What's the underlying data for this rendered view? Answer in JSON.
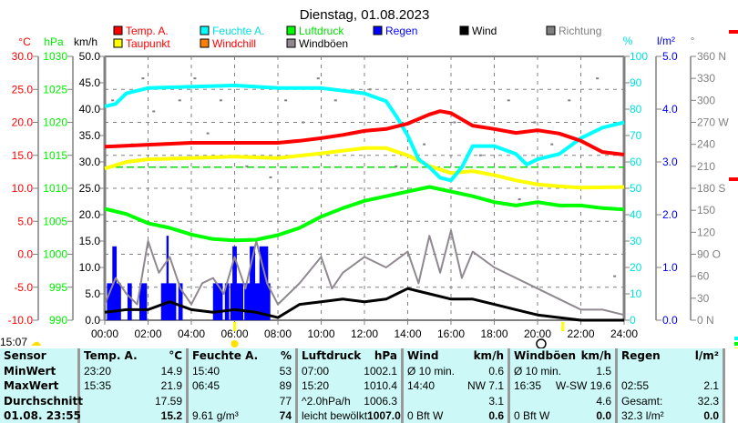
{
  "title": "Dienstag, 01.08.2023",
  "legend": [
    {
      "label": "Temp. A.",
      "color": "#ff0000",
      "text_color": "#ff0000"
    },
    {
      "label": "Feuchte A.",
      "color": "#00ffff",
      "text_color": "#00e0e0"
    },
    {
      "label": "Luftdruck",
      "color": "#00ff00",
      "text_color": "#00dd00"
    },
    {
      "label": "Regen",
      "color": "#0000ff",
      "text_color": "#0000ff"
    },
    {
      "label": "Wind",
      "color": "#000000",
      "text_color": "#000000"
    },
    {
      "label": "Richtung",
      "color": "#808080",
      "text_color": "#808080"
    },
    {
      "label": "Taupunkt",
      "color": "#ffff00",
      "text_color": "#ff0000"
    },
    {
      "label": "Windchill",
      "color": "#ff8000",
      "text_color": "#ff0000"
    },
    {
      "label": "Windböen",
      "color": "#908890",
      "text_color": "#000000"
    }
  ],
  "chart_data": {
    "type": "line",
    "title": "Dienstag, 01.08.2023",
    "x_unit": "hour",
    "xlim": [
      0,
      24
    ],
    "x_ticks": [
      "00:00",
      "02:00",
      "04:00",
      "06:00",
      "08:00",
      "10:00",
      "12:00",
      "14:00",
      "16:00",
      "18:00",
      "20:00",
      "22:00",
      "24:00"
    ],
    "axes": {
      "temp": {
        "label": "°C",
        "range": [
          -10,
          30
        ],
        "ticks": [
          "30.0",
          "25.0",
          "20.0",
          "15.0",
          "10.0",
          "5.0",
          "0.0",
          "-5.0",
          "-10.0"
        ],
        "color": "#ff0000"
      },
      "pressure": {
        "label": "hPa",
        "range": [
          990,
          1030
        ],
        "ticks": [
          "1030",
          "1025",
          "1020",
          "1015",
          "1010",
          "1005",
          "1000",
          "995",
          "990"
        ],
        "color": "#00ee00"
      },
      "wind": {
        "label": "km/h",
        "range": [
          0,
          50
        ],
        "ticks": [
          "50.0",
          "45.0",
          "40.0",
          "35.0",
          "30.0",
          "25.0",
          "20.0",
          "15.0",
          "10.0",
          "5.0",
          "0.0"
        ],
        "color": "#000000"
      },
      "humidity": {
        "label": "%",
        "range": [
          0,
          100
        ],
        "ticks": [
          "100",
          "90",
          "80",
          "70",
          "60",
          "50",
          "40",
          "30",
          "20",
          "10",
          "0"
        ],
        "color": "#00e0e0"
      },
      "rain": {
        "label": "l/m²",
        "range": [
          0,
          5
        ],
        "ticks": [
          "5.0",
          "4.0",
          "3.0",
          "2.0",
          "1.0",
          "0.0"
        ],
        "color": "#0000ff"
      },
      "direction": {
        "label": "°",
        "range": [
          0,
          360
        ],
        "ticks": [
          "360 N",
          "330",
          "300",
          "270 W",
          "240",
          "210",
          "180 S",
          "150",
          "120",
          "90  O",
          "60",
          "30",
          "0   N"
        ],
        "color": "#808080"
      }
    },
    "series": [
      {
        "name": "Temp. A.",
        "axis": "temp",
        "color": "#ff0000",
        "x": [
          0,
          2,
          4,
          6,
          8,
          9,
          10,
          11,
          12,
          13,
          14,
          15,
          15.5,
          16,
          17,
          18,
          19,
          20,
          21,
          22,
          23,
          24
        ],
        "y": [
          16.3,
          16.6,
          16.9,
          16.9,
          16.9,
          17.2,
          17.6,
          18.1,
          18.7,
          19.0,
          19.8,
          21.2,
          21.7,
          21.4,
          19.5,
          19.0,
          18.4,
          18.8,
          18.3,
          17.2,
          15.5,
          15.1
        ]
      },
      {
        "name": "Taupunkt",
        "axis": "temp",
        "color": "#ffff00",
        "x": [
          0,
          1,
          2,
          4,
          6,
          8,
          10,
          12,
          13,
          14,
          15,
          16,
          17,
          18,
          19,
          20,
          21,
          22,
          24
        ],
        "y": [
          13.0,
          14.0,
          14.4,
          14.6,
          14.8,
          14.6,
          15.3,
          16.1,
          16.1,
          15.0,
          13.4,
          12.3,
          12.6,
          12.0,
          11.2,
          10.6,
          10.3,
          10.1,
          10.2
        ]
      },
      {
        "name": "Feuchte A.",
        "axis": "humidity",
        "color": "#00ffff",
        "x": [
          0,
          0.5,
          1,
          2,
          6,
          8,
          10,
          11,
          12,
          13,
          13.5,
          14,
          14.5,
          15,
          15.5,
          16,
          16.5,
          17,
          18,
          19,
          19.5,
          20,
          21,
          22,
          23,
          24
        ],
        "y": [
          81,
          82,
          86,
          88,
          89,
          88,
          88,
          87,
          86,
          83,
          77,
          70,
          61,
          58,
          54,
          53,
          58,
          66,
          66,
          63,
          59,
          61,
          63,
          69,
          73,
          75
        ]
      },
      {
        "name": "Luftdruck",
        "axis": "pressure",
        "color": "#00ff00",
        "x": [
          0,
          1,
          2,
          3,
          4,
          5,
          6,
          7,
          8,
          9,
          10,
          11,
          12,
          13,
          14,
          15,
          16,
          17,
          18,
          19,
          20,
          21,
          22,
          23,
          24
        ],
        "y": [
          1006.9,
          1006.1,
          1004.7,
          1004.0,
          1003.0,
          1002.3,
          1002.1,
          1002.2,
          1002.9,
          1004.0,
          1005.7,
          1007.0,
          1008.1,
          1008.8,
          1009.5,
          1010.2,
          1009.5,
          1008.8,
          1007.9,
          1007.4,
          1007.9,
          1007.4,
          1007.4,
          1007.0,
          1006.8
        ]
      },
      {
        "name": "Windböen",
        "axis": "wind",
        "color": "#908890",
        "x": [
          0,
          0.5,
          1,
          1.5,
          2,
          2.5,
          3,
          3.5,
          4,
          4.5,
          5,
          5.5,
          6,
          6.5,
          7,
          7.5,
          8,
          9,
          10,
          10.5,
          11,
          12,
          13,
          14,
          14.5,
          15,
          15.5,
          16,
          16.5,
          17,
          18,
          19,
          20,
          21,
          22,
          23,
          24
        ],
        "y": [
          3,
          8,
          5,
          3,
          15,
          9,
          12,
          6,
          3,
          7,
          8,
          5,
          12,
          6,
          15,
          7,
          3,
          7,
          12,
          6,
          9,
          12,
          10,
          13,
          7,
          16,
          9,
          17,
          8,
          13,
          10,
          8,
          6,
          4,
          2,
          2,
          1
        ]
      },
      {
        "name": "Wind",
        "axis": "wind",
        "color": "#000000",
        "x": [
          0,
          1,
          2,
          3,
          4,
          5,
          6,
          7,
          8,
          9,
          10,
          11,
          12,
          13,
          14,
          15,
          16,
          17,
          18,
          19,
          20,
          21,
          22,
          23,
          24
        ],
        "y": [
          1.5,
          2,
          2,
          3.5,
          2,
          1.5,
          2,
          1.5,
          0.5,
          3,
          3.5,
          4,
          3.5,
          4,
          6,
          5,
          4,
          4,
          3,
          2,
          1,
          0.5,
          0,
          0,
          0
        ]
      }
    ],
    "rain": {
      "name": "Regen",
      "axis": "rain",
      "color": "#0000ff",
      "bars": [
        [
          0.1,
          0.75,
          0.7
        ],
        [
          0.35,
          0.55,
          1.4
        ],
        [
          1.05,
          1.25,
          0.7
        ],
        [
          1.6,
          1.95,
          0.7
        ],
        [
          2.6,
          3.3,
          0.7
        ],
        [
          2.85,
          2.95,
          1.6
        ],
        [
          3.4,
          3.6,
          0.7
        ],
        [
          5.0,
          5.45,
          0.7
        ],
        [
          5.55,
          5.75,
          0.7
        ],
        [
          5.8,
          6.4,
          0.7
        ],
        [
          5.9,
          6.1,
          1.4
        ],
        [
          6.45,
          7.65,
          0.7
        ],
        [
          6.7,
          6.95,
          1.4
        ],
        [
          7.15,
          7.55,
          1.4
        ]
      ]
    },
    "direction_deg": [
      [
        0.3,
        300
      ],
      [
        1.7,
        330
      ],
      [
        2.2,
        285
      ],
      [
        3.4,
        300
      ],
      [
        4.7,
        255
      ],
      [
        5.3,
        300
      ],
      [
        6.5,
        210
      ],
      [
        7.6,
        195
      ],
      [
        9.1,
        270
      ],
      [
        9.8,
        330
      ],
      [
        10.6,
        300
      ],
      [
        12.2,
        315
      ],
      [
        13.4,
        210
      ],
      [
        14.7,
        240
      ],
      [
        16.1,
        270
      ],
      [
        17.3,
        225
      ],
      [
        18.6,
        300
      ],
      [
        19.8,
        270
      ],
      [
        20.6,
        240
      ],
      [
        21.4,
        300
      ],
      [
        22.7,
        330
      ],
      [
        23.5,
        60
      ],
      [
        1.2,
        240
      ],
      [
        4.1,
        330
      ],
      [
        8.3,
        300
      ],
      [
        11.3,
        255
      ],
      [
        15.5,
        285
      ],
      [
        19.1,
        165
      ]
    ],
    "reference_line": {
      "axis": "temp",
      "value": 13.2,
      "color": "#00dd00"
    }
  },
  "markers": {
    "sunrise": "06:00",
    "moon": "20:10",
    "sunset": "21:10"
  },
  "status_time": "15:07",
  "table": {
    "columns": [
      {
        "head": [
          "Sensor",
          ""
        ],
        "rows": [
          [
            "MinWert",
            ""
          ],
          [
            "MaxWert",
            ""
          ],
          [
            "Durchschnitt",
            ""
          ],
          [
            "01.08. 23:55",
            ""
          ]
        ]
      },
      {
        "head": [
          "Temp. A.",
          "°C"
        ],
        "rows": [
          [
            "23:20",
            "14.9"
          ],
          [
            "15:35",
            "21.9"
          ],
          [
            "",
            "17.59"
          ],
          [
            "",
            "15.2"
          ]
        ]
      },
      {
        "head": [
          "Feuchte A.",
          "%"
        ],
        "rows": [
          [
            "15:40",
            "53"
          ],
          [
            "06:45",
            "89"
          ],
          [
            "",
            "77"
          ],
          [
            "9.61 g/m³",
            "74"
          ]
        ]
      },
      {
        "head": [
          "Luftdruck",
          "hPa"
        ],
        "rows": [
          [
            "07:00",
            "1002.1"
          ],
          [
            "15:20",
            "1010.4"
          ],
          [
            "^2.0hPa/h",
            "1006.3"
          ],
          [
            "leicht bewölkt",
            "1007.0"
          ]
        ]
      },
      {
        "head": [
          "Wind",
          "km/h"
        ],
        "rows": [
          [
            "Ø 10 min.",
            "0.6"
          ],
          [
            "14:40",
            "NW 7.1"
          ],
          [
            "",
            "3.1"
          ],
          [
            "0 Bft W",
            "0.6"
          ]
        ]
      },
      {
        "head": [
          "Windböen",
          "km/h"
        ],
        "rows": [
          [
            "Ø 10 min.",
            "1.5"
          ],
          [
            "16:35",
            "W-SW 19.6"
          ],
          [
            "",
            "4.6"
          ],
          [
            "0 Bft W",
            "0.0"
          ]
        ]
      },
      {
        "head": [
          "Regen",
          "l/m²"
        ],
        "rows": [
          [
            "",
            ""
          ],
          [
            "02:55",
            "2.1"
          ],
          [
            "Gesamt:",
            "32.3"
          ],
          [
            "32.3 l/m²",
            "0.0"
          ]
        ]
      }
    ]
  }
}
